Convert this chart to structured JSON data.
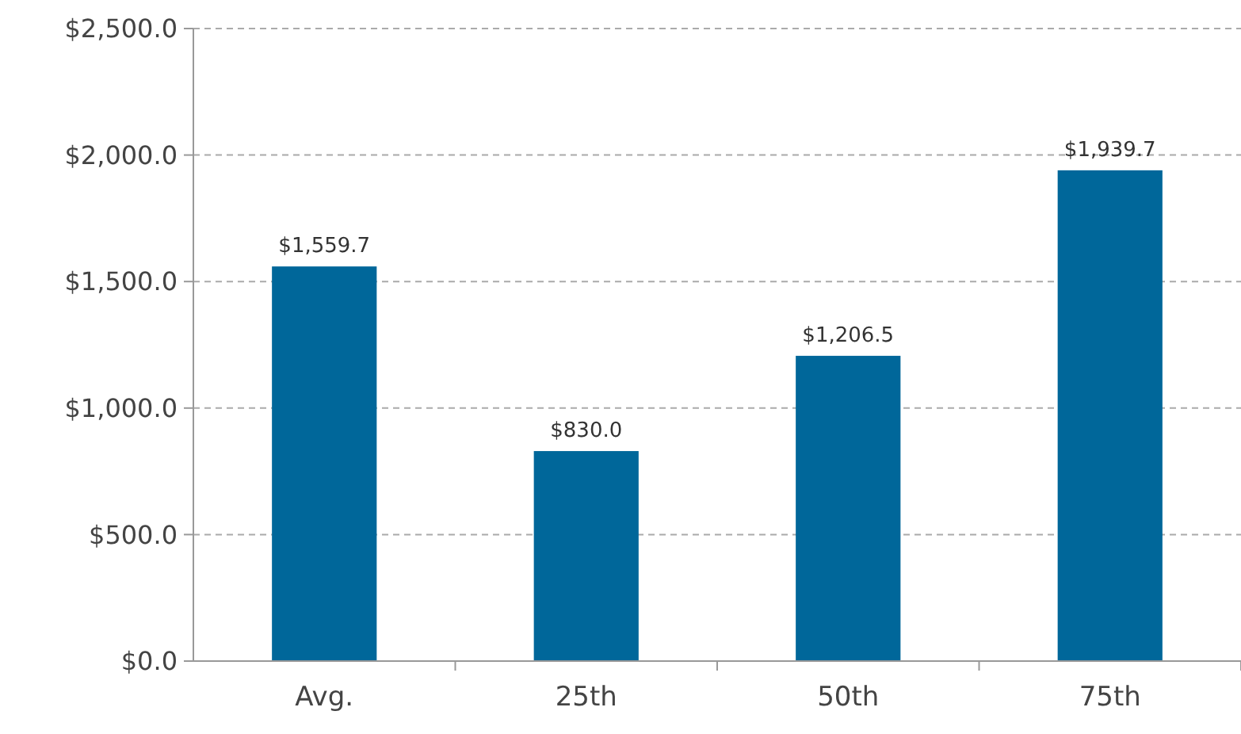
{
  "chart_data": {
    "type": "bar",
    "categories": [
      "Avg.",
      "25th",
      "50th",
      "75th"
    ],
    "values": [
      1559.7,
      830.0,
      1206.5,
      1939.7
    ],
    "color": "#00679a",
    "value_labels": [
      "$1,559.7",
      "$830.0",
      "$1,206.5",
      "$1,939.7"
    ],
    "ylim": [
      0,
      2500
    ],
    "yticks": [
      {
        "value": 0,
        "label": "$0.0"
      },
      {
        "value": 500,
        "label": "$500.0"
      },
      {
        "value": 1000,
        "label": "$1,000.0"
      },
      {
        "value": 1500,
        "label": "$1,500.0"
      },
      {
        "value": 2000,
        "label": "$2,000.0"
      },
      {
        "value": 2500,
        "label": "$2,500.0"
      }
    ],
    "grid": "y"
  }
}
